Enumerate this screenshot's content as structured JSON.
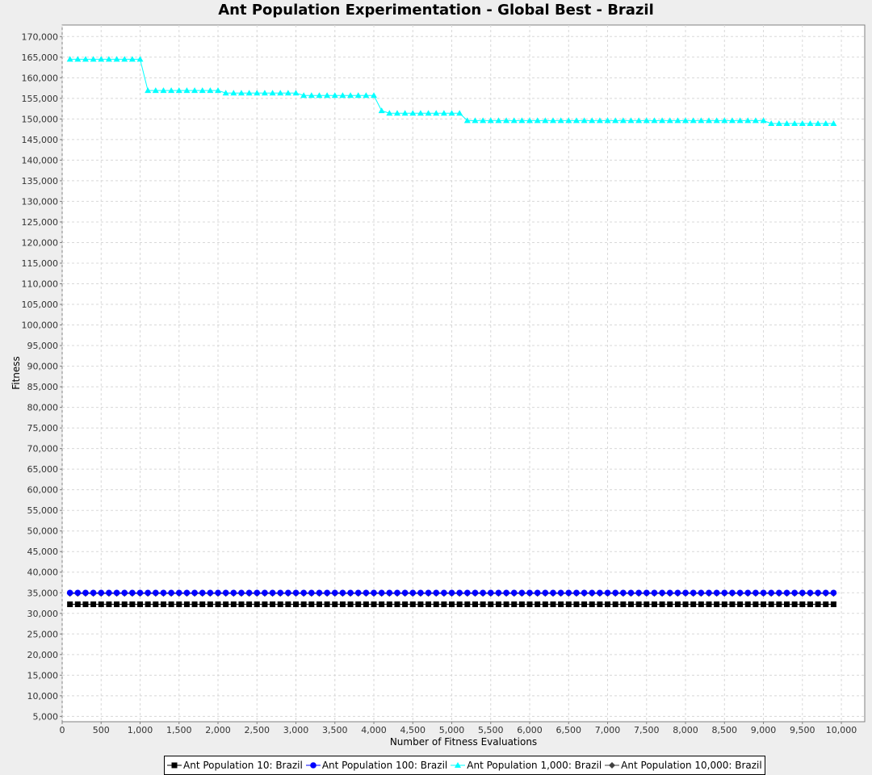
{
  "chart_data": {
    "type": "line",
    "title": "Ant Population Experimentation - Global Best - Brazil",
    "xlabel": "Number of Fitness Evaluations",
    "ylabel": "Fitness",
    "xlim": [
      0,
      10300
    ],
    "ylim": [
      3700,
      172800
    ],
    "x_ticks": [
      0,
      500,
      1000,
      1500,
      2000,
      2500,
      3000,
      3500,
      4000,
      4500,
      5000,
      5500,
      6000,
      6500,
      7000,
      7500,
      8000,
      8500,
      9000,
      9500,
      10000
    ],
    "x_tick_labels": [
      "0",
      "500",
      "1,000",
      "1,500",
      "2,000",
      "2,500",
      "3,000",
      "3,500",
      "4,000",
      "4,500",
      "5,000",
      "5,500",
      "6,000",
      "6,500",
      "7,000",
      "7,500",
      "8,000",
      "8,500",
      "9,000",
      "9,500",
      "10,000"
    ],
    "y_ticks": [
      5000,
      10000,
      15000,
      20000,
      25000,
      30000,
      35000,
      40000,
      45000,
      50000,
      55000,
      60000,
      65000,
      70000,
      75000,
      80000,
      85000,
      90000,
      95000,
      100000,
      105000,
      110000,
      115000,
      120000,
      125000,
      130000,
      135000,
      140000,
      145000,
      150000,
      155000,
      160000,
      165000,
      170000
    ],
    "y_tick_labels": [
      "5,000",
      "10,000",
      "15,000",
      "20,000",
      "25,000",
      "30,000",
      "35,000",
      "40,000",
      "45,000",
      "50,000",
      "55,000",
      "60,000",
      "65,000",
      "70,000",
      "75,000",
      "80,000",
      "85,000",
      "90,000",
      "95,000",
      "100,000",
      "105,000",
      "110,000",
      "115,000",
      "120,000",
      "125,000",
      "130,000",
      "135,000",
      "140,000",
      "145,000",
      "150,000",
      "155,000",
      "160,000",
      "165,000",
      "170,000"
    ],
    "grid": true,
    "legend_position": "bottom",
    "x": [
      100,
      200,
      300,
      400,
      500,
      600,
      700,
      800,
      900,
      1000,
      1100,
      1200,
      1300,
      1400,
      1500,
      1600,
      1700,
      1800,
      1900,
      2000,
      2100,
      2200,
      2300,
      2400,
      2500,
      2600,
      2700,
      2800,
      2900,
      3000,
      3100,
      3200,
      3300,
      3400,
      3500,
      3600,
      3700,
      3800,
      3900,
      4000,
      4100,
      4200,
      4300,
      4400,
      4500,
      4600,
      4700,
      4800,
      4900,
      5000,
      5100,
      5200,
      5300,
      5400,
      5500,
      5600,
      5700,
      5800,
      5900,
      6000,
      6100,
      6200,
      6300,
      6400,
      6500,
      6600,
      6700,
      6800,
      6900,
      7000,
      7100,
      7200,
      7300,
      7400,
      7500,
      7600,
      7700,
      7800,
      7900,
      8000,
      8100,
      8200,
      8300,
      8400,
      8500,
      8600,
      8700,
      8800,
      8900,
      9000,
      9100,
      9200,
      9300,
      9400,
      9500,
      9600,
      9700,
      9800,
      9900
    ],
    "series": [
      {
        "name": "Ant Population 10: Brazil",
        "color": "#000000",
        "marker": "square",
        "values": [
          32200,
          32200,
          32200,
          32200,
          32200,
          32200,
          32200,
          32200,
          32200,
          32200,
          32200,
          32200,
          32200,
          32200,
          32200,
          32200,
          32200,
          32200,
          32200,
          32200,
          32200,
          32200,
          32200,
          32200,
          32200,
          32200,
          32200,
          32200,
          32200,
          32200,
          32200,
          32200,
          32200,
          32200,
          32200,
          32200,
          32200,
          32200,
          32200,
          32200,
          32200,
          32200,
          32200,
          32200,
          32200,
          32200,
          32200,
          32200,
          32200,
          32200,
          32200,
          32200,
          32200,
          32200,
          32200,
          32200,
          32200,
          32200,
          32200,
          32200,
          32200,
          32200,
          32200,
          32200,
          32200,
          32200,
          32200,
          32200,
          32200,
          32200,
          32200,
          32200,
          32200,
          32200,
          32200,
          32200,
          32200,
          32200,
          32200,
          32200,
          32200,
          32200,
          32200,
          32200,
          32200,
          32200,
          32200,
          32200,
          32200,
          32200,
          32200,
          32200,
          32200,
          32200,
          32200,
          32200,
          32200,
          32200,
          32200
        ]
      },
      {
        "name": "Ant Population 100: Brazil",
        "color": "#0000ff",
        "marker": "circle",
        "values": [
          35000,
          35000,
          35000,
          35000,
          35000,
          35000,
          35000,
          35000,
          35000,
          35000,
          35000,
          35000,
          35000,
          35000,
          35000,
          35000,
          35000,
          35000,
          35000,
          35000,
          35000,
          35000,
          35000,
          35000,
          35000,
          35000,
          35000,
          35000,
          35000,
          35000,
          35000,
          35000,
          35000,
          35000,
          35000,
          35000,
          35000,
          35000,
          35000,
          35000,
          35000,
          35000,
          35000,
          35000,
          35000,
          35000,
          35000,
          35000,
          35000,
          35000,
          35000,
          35000,
          35000,
          35000,
          35000,
          35000,
          35000,
          35000,
          35000,
          35000,
          35000,
          35000,
          35000,
          35000,
          35000,
          35000,
          35000,
          35000,
          35000,
          35000,
          35000,
          35000,
          35000,
          35000,
          35000,
          35000,
          35000,
          35000,
          35000,
          35000,
          35000,
          35000,
          35000,
          35000,
          35000,
          35000,
          35000,
          35000,
          35000,
          35000,
          35000,
          35000,
          35000,
          35000,
          35000,
          35000,
          35000,
          35000,
          35000
        ]
      },
      {
        "name": "Ant Population 1,000: Brazil",
        "color": "#00ffff",
        "marker": "triangle",
        "values": [
          164500,
          164500,
          164500,
          164500,
          164500,
          164500,
          164500,
          164500,
          164500,
          164500,
          156900,
          156900,
          156900,
          156900,
          156900,
          156900,
          156900,
          156900,
          156900,
          156900,
          156300,
          156300,
          156300,
          156300,
          156300,
          156300,
          156300,
          156300,
          156300,
          156300,
          155700,
          155700,
          155700,
          155700,
          155700,
          155700,
          155700,
          155700,
          155700,
          155700,
          152000,
          151400,
          151400,
          151400,
          151400,
          151400,
          151400,
          151400,
          151400,
          151400,
          151400,
          149600,
          149600,
          149600,
          149600,
          149600,
          149600,
          149600,
          149600,
          149600,
          149600,
          149600,
          149600,
          149600,
          149600,
          149600,
          149600,
          149600,
          149600,
          149600,
          149600,
          149600,
          149600,
          149600,
          149600,
          149600,
          149600,
          149600,
          149600,
          149600,
          149600,
          149600,
          149600,
          149600,
          149600,
          149600,
          149600,
          149600,
          149600,
          149600,
          148900,
          148900,
          148900,
          148900,
          148900,
          148900,
          148900,
          148900,
          148900
        ]
      },
      {
        "name": "Ant Population 10,000: Brazil",
        "color": "#404040",
        "marker": "diamond",
        "values": [
          34800,
          34800,
          34800,
          34800,
          34800,
          34800,
          34800,
          34800,
          34800,
          34800,
          34800,
          34800,
          34800,
          34800,
          34800,
          34800,
          34800,
          34800,
          34800,
          34800,
          34800,
          34800,
          34800,
          34800,
          34800,
          34800,
          34800,
          34800,
          34800,
          34800,
          34800,
          34800,
          34800,
          34800,
          34800,
          34800,
          34800,
          34800,
          34800,
          34800,
          34800,
          34800,
          34800,
          34800,
          34800,
          34800,
          34800,
          34800,
          34800,
          34800,
          34800,
          34800,
          34800,
          34800,
          34800,
          34800,
          34800,
          34800,
          34800,
          34800,
          34800,
          34800,
          34800,
          34800,
          34800,
          34800,
          34800,
          34800,
          34800,
          34800,
          34800,
          34800,
          34800,
          34800,
          34800,
          34800,
          34800,
          34800,
          34800,
          34800,
          34800,
          34800,
          34800,
          34800,
          34800,
          34800,
          34800,
          34800,
          34800,
          34800,
          34800,
          34800,
          34800,
          34800,
          34800,
          34800,
          34800,
          34800,
          34800
        ]
      }
    ]
  }
}
